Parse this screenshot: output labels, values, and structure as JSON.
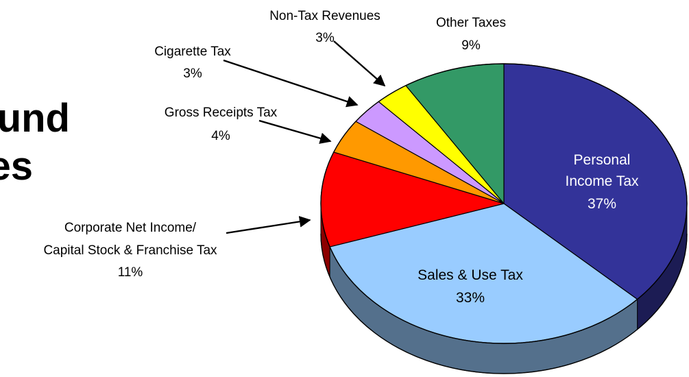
{
  "title_fragments": [
    "und",
    "es"
  ],
  "chart_data": {
    "type": "pie",
    "three_d": true,
    "title": "",
    "slices": [
      {
        "label": "Personal Income Tax",
        "value": 37,
        "label_text": "37%",
        "color": "#333399"
      },
      {
        "label": "Sales & Use Tax",
        "value": 33,
        "label_text": "33%",
        "color": "#99CCFF"
      },
      {
        "label": "Corporate Net Income/ Capital Stock & Franchise Tax",
        "value": 11,
        "label_text": "11%",
        "color": "#FF0000"
      },
      {
        "label": "Gross Receipts Tax",
        "value": 4,
        "label_text": "4%",
        "color": "#FF9900"
      },
      {
        "label": "Cigarette Tax",
        "value": 3,
        "label_text": "3%",
        "color": "#CC99FF"
      },
      {
        "label": "Non-Tax Revenues",
        "value": 3,
        "label_text": "3%",
        "color": "#FFFF00"
      },
      {
        "label": "Other Taxes",
        "value": 9,
        "label_text": "9%",
        "color": "#339966"
      }
    ]
  },
  "labels": {
    "personal": {
      "line1": "Personal",
      "line2": "Income Tax",
      "pct": "37%"
    },
    "sales": {
      "line1": "Sales & Use Tax",
      "pct": "33%"
    },
    "corporate": {
      "line1": "Corporate Net Income/",
      "line2": "Capital Stock & Franchise Tax",
      "pct": "11%"
    },
    "gross": {
      "line1": "Gross Receipts Tax",
      "pct": "4%"
    },
    "cigarette": {
      "line1": "Cigarette Tax",
      "pct": "3%"
    },
    "nontax": {
      "line1": "Non-Tax Revenues",
      "pct": "3%"
    },
    "other": {
      "line1": "Other Taxes",
      "pct": "9%"
    }
  }
}
